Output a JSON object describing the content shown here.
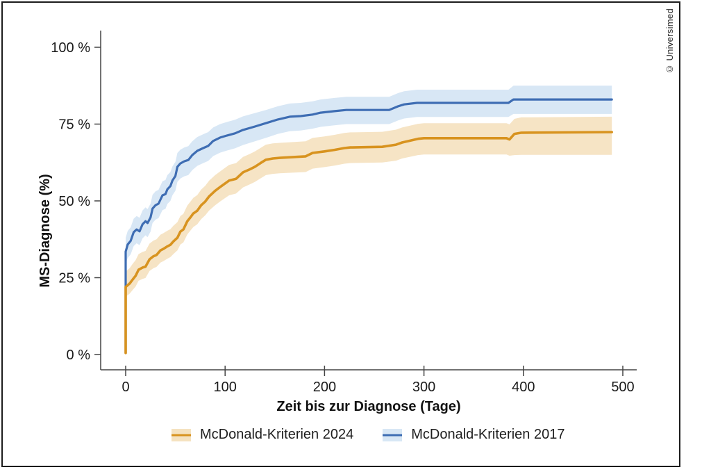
{
  "copyright": "© Universimed",
  "legend": {
    "items": [
      {
        "key": "mcdonald-2024",
        "label": "McDonald-Kriterien 2024",
        "line_color": "#d8931f",
        "band_color": "#f5e2c0"
      },
      {
        "key": "mcdonald-2017",
        "label": "McDonald-Kriterien 2017",
        "line_color": "#3e6db3",
        "band_color": "#d8e7f5"
      }
    ]
  },
  "chart_data": {
    "type": "line",
    "subtype": "kaplan-meier-cumulative-incidence-with-confidence-bands",
    "title": "",
    "xlabel": "Zeit bis zur Diagnose (Tage)",
    "ylabel": "MS-Diagnose (%)",
    "xlim": [
      0,
      500
    ],
    "ylim": [
      0,
      100
    ],
    "x_ticks": [
      0,
      100,
      200,
      300,
      400,
      500
    ],
    "y_ticks": [
      {
        "value": 0,
        "label": "0 %"
      },
      {
        "value": 25,
        "label": "25 %"
      },
      {
        "value": 50,
        "label": "50 %"
      },
      {
        "value": 75,
        "label": "75 %"
      },
      {
        "value": 100,
        "label": "100 %"
      }
    ],
    "grid": false,
    "legend_position": "bottom",
    "axis_color": "#444444",
    "point_format": [
      "day",
      "value_pct",
      "ci_lower_pct",
      "ci_upper_pct"
    ],
    "series": [
      {
        "key": "mcdonald-2017",
        "name": "McDonald-Kriterien 2017",
        "color": "#3e6db3",
        "band_color": "#d8e7f5",
        "band_opacity": 1,
        "line_width": 3.2,
        "points": [
          [
            0,
            0.5,
            29.5,
            38.0
          ],
          [
            0,
            33.5,
            29.5,
            38.0
          ],
          [
            2,
            35.8,
            31.4,
            40.2
          ],
          [
            5,
            37.0,
            32.6,
            41.4
          ],
          [
            8,
            39.8,
            35.3,
            44.2
          ],
          [
            11,
            40.7,
            36.2,
            45.1
          ],
          [
            14,
            40.1,
            35.6,
            44.5
          ],
          [
            17,
            42.4,
            37.8,
            46.9
          ],
          [
            20,
            43.4,
            38.8,
            47.9
          ],
          [
            22,
            42.8,
            38.2,
            47.3
          ],
          [
            25,
            44.6,
            40.0,
            49.1
          ],
          [
            27,
            47.5,
            42.8,
            52.0
          ],
          [
            30,
            48.6,
            43.9,
            53.1
          ],
          [
            33,
            49.1,
            44.4,
            53.6
          ],
          [
            37,
            51.8,
            47.0,
            56.4
          ],
          [
            40,
            52.2,
            47.4,
            56.8
          ],
          [
            42,
            53.8,
            49.0,
            58.4
          ],
          [
            45,
            54.8,
            50.0,
            59.4
          ],
          [
            47,
            56.6,
            51.8,
            61.2
          ],
          [
            50,
            58.1,
            53.3,
            62.7
          ],
          [
            52,
            61.1,
            56.2,
            65.6
          ],
          [
            55,
            62.2,
            57.3,
            66.7
          ],
          [
            59,
            62.9,
            58.0,
            67.4
          ],
          [
            63,
            63.3,
            58.4,
            67.8
          ],
          [
            67,
            64.9,
            60.0,
            69.4
          ],
          [
            72,
            66.3,
            61.4,
            70.8
          ],
          [
            78,
            67.2,
            62.3,
            71.7
          ],
          [
            83,
            67.9,
            63.0,
            72.4
          ],
          [
            88,
            69.5,
            64.6,
            73.9
          ],
          [
            95,
            70.6,
            65.7,
            75.0
          ],
          [
            102,
            71.3,
            66.4,
            75.7
          ],
          [
            110,
            72.0,
            67.1,
            76.4
          ],
          [
            118,
            73.1,
            68.2,
            77.5
          ],
          [
            130,
            74.2,
            69.4,
            78.6
          ],
          [
            141,
            75.3,
            70.5,
            79.6
          ],
          [
            153,
            76.5,
            71.8,
            80.8
          ],
          [
            165,
            77.4,
            72.7,
            81.7
          ],
          [
            176,
            77.6,
            72.9,
            81.9
          ],
          [
            188,
            78.1,
            73.5,
            82.4
          ],
          [
            196,
            78.7,
            74.1,
            83.0
          ],
          [
            210,
            79.2,
            74.6,
            83.5
          ],
          [
            222,
            79.6,
            75.0,
            83.9
          ],
          [
            265,
            79.6,
            75.0,
            83.9
          ],
          [
            274,
            80.8,
            76.2,
            85.1
          ],
          [
            280,
            81.4,
            76.8,
            85.7
          ],
          [
            293,
            81.9,
            77.3,
            86.2
          ],
          [
            385,
            81.9,
            77.3,
            86.2
          ],
          [
            390,
            83.0,
            78.3,
            87.5
          ],
          [
            489,
            83.0,
            78.3,
            87.5
          ]
        ]
      },
      {
        "key": "mcdonald-2024",
        "name": "McDonald-Kriterien 2024",
        "color": "#d8931f",
        "band_color": "#f5e2c0",
        "band_opacity": 0.92,
        "line_width": 3.6,
        "points": [
          [
            0,
            0.5,
            18.8,
            27.0
          ],
          [
            0,
            22.0,
            18.8,
            27.0
          ],
          [
            4,
            23.1,
            19.8,
            28.1
          ],
          [
            7,
            24.4,
            21.0,
            29.5
          ],
          [
            10,
            25.6,
            22.1,
            30.7
          ],
          [
            13,
            27.6,
            24.0,
            32.7
          ],
          [
            17,
            28.3,
            24.6,
            33.4
          ],
          [
            20,
            28.6,
            24.9,
            33.7
          ],
          [
            24,
            31.0,
            27.2,
            36.1
          ],
          [
            28,
            32.0,
            28.1,
            37.1
          ],
          [
            31,
            32.4,
            28.5,
            37.5
          ],
          [
            35,
            33.9,
            29.9,
            39.0
          ],
          [
            38,
            34.4,
            30.4,
            39.5
          ],
          [
            42,
            35.2,
            31.2,
            40.3
          ],
          [
            45,
            35.7,
            31.7,
            40.8
          ],
          [
            48,
            36.8,
            32.7,
            41.9
          ],
          [
            52,
            38.0,
            33.9,
            43.1
          ],
          [
            55,
            40.0,
            35.8,
            45.1
          ],
          [
            58,
            40.7,
            36.5,
            45.8
          ],
          [
            62,
            43.4,
            39.1,
            48.5
          ],
          [
            65,
            44.6,
            40.3,
            49.7
          ],
          [
            68,
            45.9,
            41.5,
            51.0
          ],
          [
            72,
            46.8,
            42.4,
            51.9
          ],
          [
            76,
            48.6,
            44.1,
            53.7
          ],
          [
            80,
            49.8,
            45.3,
            54.9
          ],
          [
            84,
            51.5,
            46.9,
            56.6
          ],
          [
            90,
            53.3,
            48.6,
            58.4
          ],
          [
            95,
            54.5,
            49.8,
            59.6
          ],
          [
            104,
            56.6,
            51.8,
            61.7
          ],
          [
            111,
            57.2,
            52.4,
            62.3
          ],
          [
            118,
            59.3,
            54.4,
            64.3
          ],
          [
            125,
            60.3,
            55.4,
            65.3
          ],
          [
            130,
            61.1,
            56.2,
            66.1
          ],
          [
            136,
            62.4,
            57.4,
            67.3
          ],
          [
            141,
            63.4,
            58.4,
            68.3
          ],
          [
            148,
            63.8,
            58.8,
            68.7
          ],
          [
            155,
            64.0,
            59.0,
            68.9
          ],
          [
            181,
            64.5,
            59.4,
            69.4
          ],
          [
            188,
            65.6,
            60.5,
            70.5
          ],
          [
            200,
            66.1,
            61.0,
            71.0
          ],
          [
            210,
            66.6,
            61.5,
            71.5
          ],
          [
            220,
            67.2,
            62.1,
            72.1
          ],
          [
            226,
            67.4,
            62.3,
            72.3
          ],
          [
            258,
            67.6,
            62.5,
            72.5
          ],
          [
            272,
            68.3,
            63.1,
            73.2
          ],
          [
            278,
            69.0,
            63.8,
            73.9
          ],
          [
            294,
            70.2,
            64.9,
            75.1
          ],
          [
            300,
            70.4,
            65.1,
            75.3
          ],
          [
            383,
            70.4,
            65.1,
            75.3
          ],
          [
            386,
            70.0,
            64.7,
            74.9
          ],
          [
            391,
            71.8,
            64.9,
            76.7
          ],
          [
            398,
            72.2,
            65.0,
            77.2
          ],
          [
            489,
            72.4,
            65.0,
            77.4
          ]
        ]
      }
    ]
  }
}
